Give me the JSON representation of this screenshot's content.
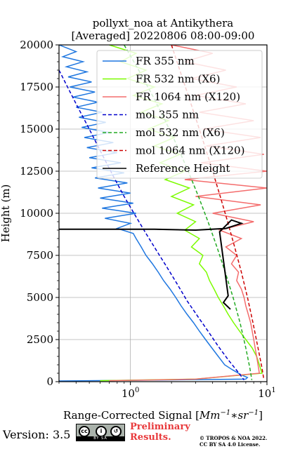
{
  "chart_data": {
    "type": "line",
    "title": "pollyxt_noa at Antikythera",
    "subtitle": "[Averaged] 20220806 08:00-09:00",
    "ylabel": "Height (m)",
    "xlabel_main": "Range-Corrected Signal [",
    "xlabel_unit": "Mm",
    "xlabel_exp1": "−1",
    "xlabel_mid": "∗sr",
    "xlabel_exp2": "−1",
    "xlabel_end": "]",
    "xscale": "log",
    "xlim": [
      0.3,
      10
    ],
    "ylim": [
      0,
      20000
    ],
    "grid": true,
    "legend_position": "top-right",
    "x_ticks": [
      {
        "value": 1,
        "base": "10",
        "exp": "0"
      },
      {
        "value": 10,
        "base": "10",
        "exp": "1"
      }
    ],
    "y_ticks": [
      0,
      2500,
      5000,
      7500,
      10000,
      12500,
      15000,
      17500,
      20000
    ],
    "series": [
      {
        "name": "FR 355 nm",
        "color": "#1f77e0",
        "style": "solid",
        "points": [
          [
            0.3,
            20000
          ],
          [
            0.4,
            19600
          ],
          [
            0.32,
            19300
          ],
          [
            0.45,
            19000
          ],
          [
            0.34,
            18700
          ],
          [
            0.48,
            18400
          ],
          [
            0.35,
            18100
          ],
          [
            0.52,
            17800
          ],
          [
            0.36,
            17500
          ],
          [
            0.55,
            17200
          ],
          [
            0.38,
            16900
          ],
          [
            0.58,
            16600
          ],
          [
            0.4,
            16300
          ],
          [
            0.62,
            16000
          ],
          [
            0.42,
            15700
          ],
          [
            0.66,
            15400
          ],
          [
            0.44,
            15100
          ],
          [
            0.7,
            14800
          ],
          [
            0.46,
            14500
          ],
          [
            0.75,
            14200
          ],
          [
            0.48,
            13900
          ],
          [
            0.8,
            13600
          ],
          [
            0.5,
            13300
          ],
          [
            0.85,
            13000
          ],
          [
            0.52,
            12700
          ],
          [
            0.9,
            12400
          ],
          [
            0.55,
            12100
          ],
          [
            0.95,
            11800
          ],
          [
            0.58,
            11500
          ],
          [
            1.0,
            11200
          ],
          [
            0.6,
            10900
          ],
          [
            1.05,
            10600
          ],
          [
            0.62,
            10300
          ],
          [
            1.1,
            10000
          ],
          [
            0.65,
            9700
          ],
          [
            1.0,
            9400
          ],
          [
            0.8,
            9100
          ],
          [
            1.05,
            8800
          ],
          [
            1.1,
            8500
          ],
          [
            1.2,
            8000
          ],
          [
            1.3,
            7500
          ],
          [
            1.45,
            7000
          ],
          [
            1.6,
            6500
          ],
          [
            1.75,
            6000
          ],
          [
            1.95,
            5500
          ],
          [
            2.15,
            5000
          ],
          [
            2.35,
            4500
          ],
          [
            2.6,
            4000
          ],
          [
            2.9,
            3500
          ],
          [
            3.2,
            3000
          ],
          [
            3.55,
            2500
          ],
          [
            3.95,
            2000
          ],
          [
            4.4,
            1500
          ],
          [
            4.9,
            1000
          ],
          [
            5.6,
            700
          ],
          [
            6.5,
            400
          ],
          [
            7.2,
            250
          ],
          [
            7.0,
            150
          ],
          [
            1.0,
            80
          ],
          [
            0.3,
            40
          ]
        ]
      },
      {
        "name": "FR 532 nm (X6)",
        "color": "#7cfc00",
        "style": "solid",
        "points": [
          [
            0.7,
            20000
          ],
          [
            1.1,
            19500
          ],
          [
            0.85,
            19000
          ],
          [
            1.3,
            18500
          ],
          [
            0.95,
            18000
          ],
          [
            1.5,
            17500
          ],
          [
            1.05,
            17000
          ],
          [
            1.7,
            16500
          ],
          [
            1.2,
            16000
          ],
          [
            1.9,
            15500
          ],
          [
            1.35,
            15000
          ],
          [
            2.1,
            14500
          ],
          [
            1.5,
            14000
          ],
          [
            2.3,
            13500
          ],
          [
            1.65,
            13000
          ],
          [
            2.5,
            12500
          ],
          [
            1.8,
            12000
          ],
          [
            2.7,
            11500
          ],
          [
            2.0,
            11000
          ],
          [
            2.9,
            10500
          ],
          [
            2.2,
            10000
          ],
          [
            3.0,
            9500
          ],
          [
            2.5,
            9000
          ],
          [
            3.2,
            8500
          ],
          [
            2.8,
            8000
          ],
          [
            3.4,
            7500
          ],
          [
            3.2,
            7000
          ],
          [
            3.6,
            6500
          ],
          [
            3.8,
            6000
          ],
          [
            4.1,
            5500
          ],
          [
            4.4,
            5000
          ],
          [
            4.8,
            4500
          ],
          [
            5.2,
            4000
          ],
          [
            5.7,
            3500
          ],
          [
            6.3,
            3000
          ],
          [
            7.0,
            2500
          ],
          [
            7.8,
            2000
          ],
          [
            8.4,
            1500
          ],
          [
            8.8,
            1000
          ],
          [
            9.2,
            500
          ],
          [
            3.0,
            150
          ],
          [
            0.6,
            60
          ]
        ]
      },
      {
        "name": "FR 1064 nm (X120)",
        "color": "#f46d6d",
        "style": "solid",
        "points": [
          [
            2.0,
            20000
          ],
          [
            4.0,
            19500
          ],
          [
            2.5,
            19000
          ],
          [
            5.0,
            18500
          ],
          [
            2.8,
            18000
          ],
          [
            6.0,
            17500
          ],
          [
            3.0,
            17000
          ],
          [
            7.0,
            16500
          ],
          [
            3.2,
            16000
          ],
          [
            8.0,
            15500
          ],
          [
            3.4,
            15000
          ],
          [
            9.0,
            14500
          ],
          [
            3.6,
            14000
          ],
          [
            9.5,
            13500
          ],
          [
            3.3,
            13000
          ],
          [
            10.0,
            12500
          ],
          [
            2.5,
            12000
          ],
          [
            10.0,
            11500
          ],
          [
            3.0,
            11000
          ],
          [
            9.0,
            10500
          ],
          [
            4.0,
            10000
          ],
          [
            8.0,
            9500
          ],
          [
            4.5,
            9000
          ],
          [
            6.5,
            8500
          ],
          [
            5.0,
            8000
          ],
          [
            6.0,
            7500
          ],
          [
            5.5,
            7000
          ],
          [
            6.2,
            6500
          ],
          [
            6.0,
            6000
          ],
          [
            6.5,
            5500
          ],
          [
            6.8,
            5000
          ],
          [
            7.0,
            4500
          ],
          [
            7.3,
            4000
          ],
          [
            7.6,
            3500
          ],
          [
            7.8,
            3000
          ],
          [
            8.0,
            2500
          ],
          [
            8.2,
            2000
          ],
          [
            8.4,
            1500
          ],
          [
            8.6,
            1000
          ],
          [
            8.8,
            500
          ],
          [
            3.0,
            150
          ],
          [
            0.7,
            60
          ]
        ]
      },
      {
        "name": "mol 355 nm",
        "color": "#0000cc",
        "style": "dashed",
        "points": [
          [
            0.3,
            18500
          ],
          [
            0.4,
            16500
          ],
          [
            0.5,
            15000
          ],
          [
            0.62,
            13500
          ],
          [
            0.75,
            12200
          ],
          [
            0.9,
            11000
          ],
          [
            1.08,
            9900
          ],
          [
            1.3,
            8800
          ],
          [
            1.55,
            7800
          ],
          [
            1.85,
            6800
          ],
          [
            2.2,
            5800
          ],
          [
            2.6,
            4800
          ],
          [
            3.1,
            3900
          ],
          [
            3.7,
            3000
          ],
          [
            4.4,
            2100
          ],
          [
            5.2,
            1300
          ],
          [
            6.1,
            600
          ],
          [
            6.8,
            100
          ]
        ]
      },
      {
        "name": "mol 532 nm (X6)",
        "color": "#22aa22",
        "style": "dashed",
        "points": [
          [
            0.9,
            20000
          ],
          [
            1.15,
            18500
          ],
          [
            1.45,
            17000
          ],
          [
            1.8,
            15500
          ],
          [
            2.2,
            14000
          ],
          [
            2.65,
            12500
          ],
          [
            3.15,
            11000
          ],
          [
            3.7,
            9500
          ],
          [
            4.3,
            8000
          ],
          [
            4.95,
            6500
          ],
          [
            5.65,
            5000
          ],
          [
            6.35,
            3500
          ],
          [
            7.0,
            2000
          ],
          [
            7.5,
            800
          ],
          [
            7.75,
            100
          ]
        ]
      },
      {
        "name": "mol 1064 nm (X120)",
        "color": "#cc0000",
        "style": "dashed",
        "points": [
          [
            2.0,
            20000
          ],
          [
            2.3,
            18500
          ],
          [
            2.65,
            17000
          ],
          [
            3.05,
            15500
          ],
          [
            3.5,
            14000
          ],
          [
            4.0,
            12500
          ],
          [
            4.55,
            11000
          ],
          [
            5.15,
            9500
          ],
          [
            5.8,
            8000
          ],
          [
            6.5,
            6500
          ],
          [
            7.2,
            5000
          ],
          [
            7.9,
            3500
          ],
          [
            8.6,
            2000
          ],
          [
            9.2,
            800
          ],
          [
            9.5,
            100
          ]
        ]
      },
      {
        "name": "Reference Height",
        "color": "#000000",
        "style": "solid",
        "points": [
          [
            0.3,
            9050
          ],
          [
            1.5,
            9050
          ],
          [
            3.0,
            9000
          ],
          [
            5.0,
            9100
          ],
          [
            6.5,
            9400
          ],
          [
            5.5,
            9600
          ],
          [
            4.5,
            8900
          ],
          [
            5.2,
            5100
          ],
          [
            4.8,
            4700
          ],
          [
            5.4,
            4300
          ]
        ]
      }
    ]
  },
  "footer": {
    "version": "Version: 3.5",
    "license_badge": "cc-by-sa-badge",
    "badge_strip": "BY  SA",
    "preliminary_line1": "Preliminary",
    "preliminary_line2": "Results.",
    "copyright_line1": "© TROPOS & NOA 2022.",
    "copyright_line2": "CC BY SA 4.0 License."
  }
}
